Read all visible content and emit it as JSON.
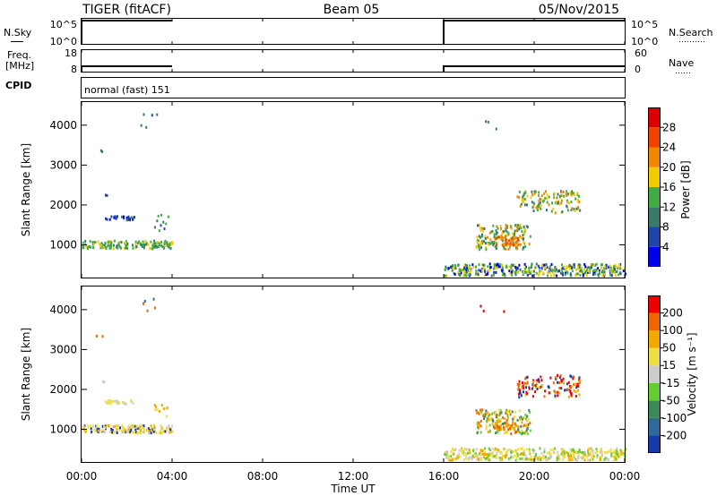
{
  "header": {
    "title": "TIGER (fitACF)",
    "beam": "Beam 05",
    "date": "05/Nov/2015"
  },
  "param_panels": {
    "nsky": {
      "label": "N.Sky",
      "top_tick": "10^5",
      "bottom_tick": "10^0",
      "right_label": "N.Search",
      "right_top_tick": "10^5",
      "right_bottom_tick": "10^0"
    },
    "freq": {
      "label_line1": "Freq.",
      "label_line2": "[MHz]",
      "top_tick": "18",
      "bottom_tick": "8",
      "right_label": "Nave",
      "right_top_tick": "60",
      "right_bottom_tick": "0"
    },
    "cpid": {
      "label": "CPID",
      "value": "normal (fast) 151"
    },
    "active_periods_hours": [
      [
        0,
        4
      ],
      [
        16,
        24
      ]
    ]
  },
  "x_axis": {
    "label": "Time UT",
    "ticks": [
      "00:00",
      "04:00",
      "08:00",
      "12:00",
      "16:00",
      "20:00",
      "00:00"
    ],
    "tick_hours": [
      0,
      4,
      8,
      12,
      16,
      20,
      24
    ],
    "range_hours": [
      0,
      24
    ]
  },
  "y_axis": {
    "label": "Slant Range [km]",
    "ticks": [
      "1000",
      "2000",
      "3000",
      "4000"
    ],
    "tick_values": [
      1000,
      2000,
      3000,
      4000
    ],
    "range_km": [
      180,
      4580
    ]
  },
  "power_scale": {
    "label": "Power [dB]",
    "ticks": [
      "4",
      "8",
      "12",
      "16",
      "20",
      "24",
      "28"
    ],
    "colors": [
      "#0000ee",
      "#2244aa",
      "#3a7a6a",
      "#44aa44",
      "#eecc00",
      "#ee8800",
      "#ee4400",
      "#dd0000"
    ]
  },
  "velocity_scale": {
    "label": "Velocity [m s⁻¹]",
    "ticks": [
      "200",
      "100",
      "50",
      "15",
      "-15",
      "-50",
      "-100",
      "-200"
    ],
    "colors": [
      "#1a3aaa",
      "#2f6a9a",
      "#3a8a5a",
      "#66cc33",
      "#cccccc",
      "#eedd44",
      "#eeaa00",
      "#ee6600",
      "#ee0000"
    ]
  },
  "chart_data": [
    {
      "type": "heatmap",
      "title": "Power",
      "xlabel": "Time UT",
      "ylabel": "Slant Range [km]",
      "colorbar_label": "Power [dB]",
      "clusters": [
        {
          "t": [
            0.0,
            4.0
          ],
          "r": [
            900,
            1100
          ],
          "n": 160,
          "levels": [
            3,
            3,
            2,
            4,
            3
          ]
        },
        {
          "t": [
            1.0,
            2.3
          ],
          "r": [
            1620,
            1720
          ],
          "n": 28,
          "levels": [
            0,
            1,
            1,
            2
          ]
        },
        {
          "t": [
            3.2,
            3.8
          ],
          "r": [
            1300,
            1750
          ],
          "n": 10,
          "levels": [
            1,
            2,
            3
          ]
        },
        {
          "t": [
            16.0,
            24.0
          ],
          "r": [
            220,
            520
          ],
          "n": 380,
          "levels": [
            3,
            3,
            2,
            4,
            1,
            0,
            4
          ]
        },
        {
          "t": [
            17.4,
            19.8
          ],
          "r": [
            880,
            1500
          ],
          "n": 150,
          "levels": [
            3,
            4,
            5,
            2
          ]
        },
        {
          "t": [
            18.2,
            19.3
          ],
          "r": [
            980,
            1200
          ],
          "n": 45,
          "levels": [
            5,
            6,
            5
          ]
        },
        {
          "t": [
            19.2,
            22.0
          ],
          "r": [
            1800,
            2350
          ],
          "n": 120,
          "levels": [
            3,
            4,
            2,
            5
          ]
        },
        {
          "t": [
            17.6,
            18.8
          ],
          "r": [
            3900,
            4100
          ],
          "n": 3,
          "levels": [
            2
          ]
        },
        {
          "t": [
            0.6,
            0.9
          ],
          "r": [
            3300,
            3400
          ],
          "n": 2,
          "levels": [
            2
          ]
        },
        {
          "t": [
            2.6,
            3.4
          ],
          "r": [
            3900,
            4300
          ],
          "n": 5,
          "levels": [
            1,
            2
          ]
        },
        {
          "t": [
            0.9,
            1.1
          ],
          "r": [
            2150,
            2250
          ],
          "n": 2,
          "levels": [
            1
          ]
        }
      ]
    },
    {
      "type": "heatmap",
      "title": "Velocity",
      "xlabel": "Time UT",
      "ylabel": "Slant Range [km]",
      "colorbar_label": "Velocity [m s⁻¹]",
      "clusters": [
        {
          "t": [
            0.0,
            4.0
          ],
          "r": [
            900,
            1100
          ],
          "n": 160,
          "levels": [
            5,
            5,
            6,
            4,
            0
          ]
        },
        {
          "t": [
            1.0,
            2.3
          ],
          "r": [
            1620,
            1720
          ],
          "n": 28,
          "levels": [
            4,
            5
          ]
        },
        {
          "t": [
            3.2,
            3.8
          ],
          "r": [
            1300,
            1750
          ],
          "n": 10,
          "levels": [
            5,
            6
          ]
        },
        {
          "t": [
            16.0,
            24.0
          ],
          "r": [
            220,
            520
          ],
          "n": 380,
          "levels": [
            5,
            4,
            6,
            5,
            3
          ]
        },
        {
          "t": [
            17.4,
            19.8
          ],
          "r": [
            880,
            1500
          ],
          "n": 150,
          "levels": [
            6,
            5,
            7,
            2,
            3
          ]
        },
        {
          "t": [
            18.2,
            19.3
          ],
          "r": [
            980,
            1200
          ],
          "n": 45,
          "levels": [
            6,
            7,
            6
          ]
        },
        {
          "t": [
            19.2,
            22.0
          ],
          "r": [
            1800,
            2350
          ],
          "n": 120,
          "levels": [
            8,
            7,
            8,
            0,
            6
          ]
        },
        {
          "t": [
            17.6,
            18.8
          ],
          "r": [
            3900,
            4100
          ],
          "n": 3,
          "levels": [
            8
          ]
        },
        {
          "t": [
            0.6,
            0.9
          ],
          "r": [
            3300,
            3400
          ],
          "n": 2,
          "levels": [
            7
          ]
        },
        {
          "t": [
            2.6,
            3.4
          ],
          "r": [
            3900,
            4300
          ],
          "n": 5,
          "levels": [
            7,
            1
          ]
        },
        {
          "t": [
            0.9,
            1.1
          ],
          "r": [
            2150,
            2250
          ],
          "n": 2,
          "levels": [
            4
          ]
        }
      ]
    }
  ]
}
